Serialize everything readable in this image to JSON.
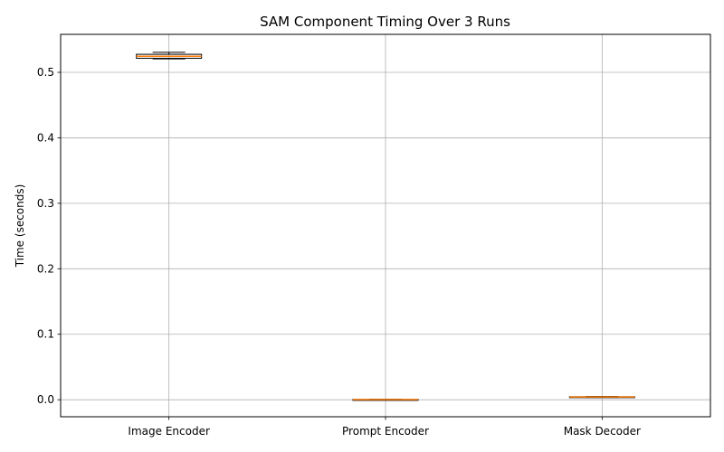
{
  "chart_data": {
    "type": "box",
    "title": "SAM Component Timing Over 3 Runs",
    "xlabel": "",
    "ylabel": "Time (seconds)",
    "categories": [
      "Image Encoder",
      "Prompt Encoder",
      "Mask Decoder"
    ],
    "boxes": [
      {
        "whisker_low": 0.5205,
        "q1": 0.5215,
        "median": 0.5245,
        "q3": 0.5275,
        "whisker_high": 0.5305
      },
      {
        "whisker_low": 0.0001,
        "q1": 0.0002,
        "median": 0.0003,
        "q3": 0.0004,
        "whisker_high": 0.0005
      },
      {
        "whisker_low": 0.0035,
        "q1": 0.0038,
        "median": 0.0042,
        "q3": 0.0046,
        "whisker_high": 0.0049
      }
    ],
    "ylim": [
      -0.026,
      0.558
    ],
    "yticks": [
      "0.0",
      "0.1",
      "0.2",
      "0.3",
      "0.4",
      "0.5"
    ],
    "grid": true,
    "colors": {
      "box_edge": "#000000",
      "median": "#ff7f0e",
      "grid": "#b0b0b0"
    }
  }
}
